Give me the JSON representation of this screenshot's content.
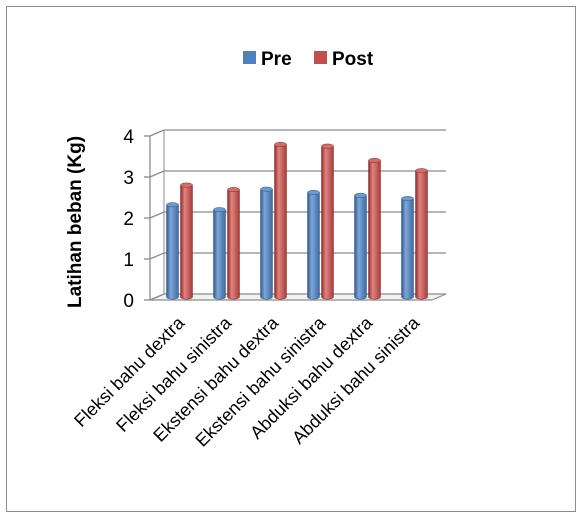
{
  "chart_data": {
    "type": "bar",
    "title": "",
    "xlabel": "",
    "ylabel": "Latihan beban (Kg)",
    "categories": [
      "Fleksi bahu dextra",
      "Fleksi bahu sinistra",
      "Ekstensi bahu dextra",
      "Ekstensi bahu sinistra",
      "Abduksi bahu dextra",
      "Abduksi bahu sinistra"
    ],
    "series": [
      {
        "name": "Pre",
        "color": "#4f81bd",
        "values": [
          2.25,
          2.13,
          2.63,
          2.55,
          2.48,
          2.4
        ]
      },
      {
        "name": "Post",
        "color": "#c0504d",
        "values": [
          2.73,
          2.62,
          3.72,
          3.68,
          3.33,
          3.08
        ]
      }
    ],
    "ylim": [
      0,
      4
    ],
    "yticks": [
      "0",
      "1",
      "2",
      "3",
      "4"
    ],
    "grid": true,
    "legend_position": "top",
    "style": "3d-cylinder"
  }
}
